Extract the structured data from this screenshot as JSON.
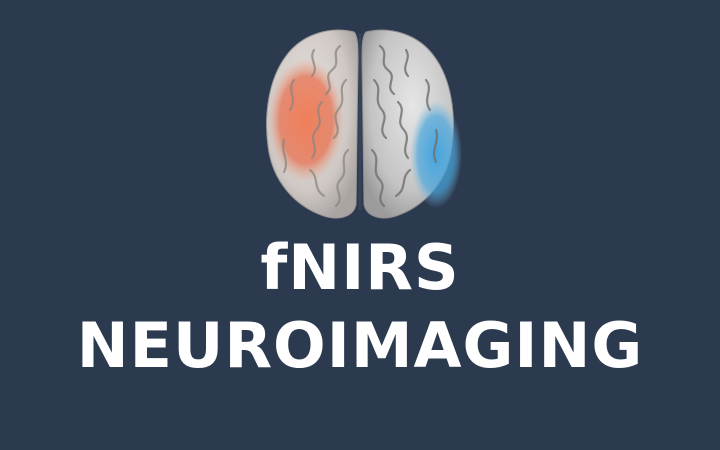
{
  "title": {
    "line1": "fNIRS",
    "line2": "NEUROIMAGING"
  },
  "graphic": {
    "icon": "brain-icon",
    "hemisphere_left_activation_color": "#e8714c",
    "hemisphere_right_activation_color": "#4aa6dc",
    "background_color": "#2c3a50",
    "cortex_color": "#d9d9d9"
  }
}
